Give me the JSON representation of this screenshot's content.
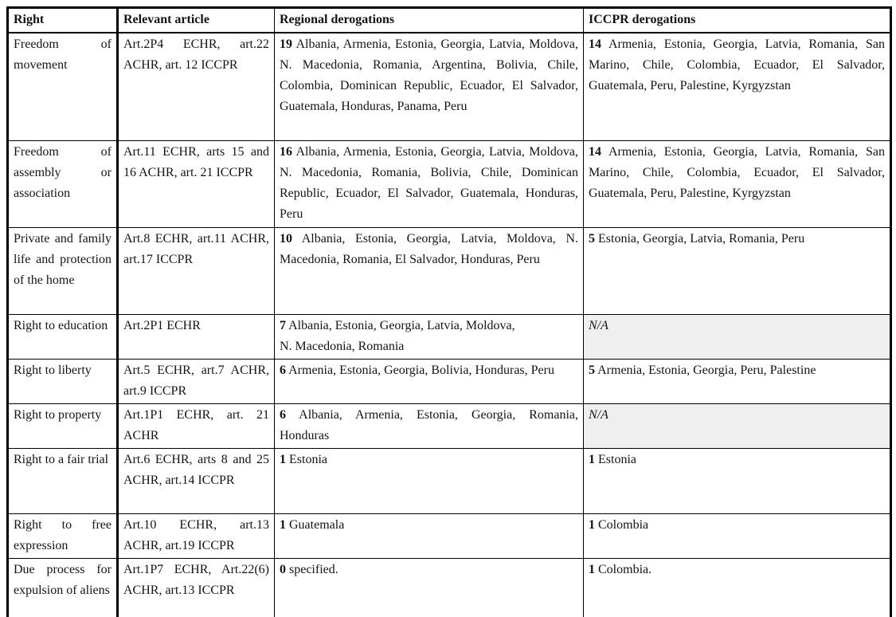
{
  "colors": {
    "border": "#000000",
    "text": "#141414",
    "na_cell_background": "#efefef",
    "page_background": "#ffffff"
  },
  "table": {
    "headers": [
      "Right",
      "Relevant article",
      "Regional derogations",
      "ICCPR derogations"
    ],
    "na_label": "N/A",
    "rows": [
      {
        "right": "Freedom of movement",
        "article": "Art.2P4 ECHR, art.22 ACHR, art. 12 ICCPR",
        "regional": {
          "count": "19",
          "text": "Albania, Armenia, Estonia, Georgia, Latvia, Moldova, N. Macedonia, Romania, Argentina, Bolivia, Chile, Colombia, Dominican Republic, Ecuador, El Salvador, Guatemala, Honduras, Panama, Peru"
        },
        "iccpr": {
          "count": "14",
          "text": "Armenia, Estonia, Georgia, Latvia, Romania, San Marino, Chile, Colombia, Ecuador, El Salvador, Guatemala, Peru, Palestine, Kyrgyzstan"
        }
      },
      {
        "right": "Freedom of assembly or association",
        "article": "Art.11 ECHR, arts 15 and 16 ACHR, art. 21 ICCPR",
        "regional": {
          "count": "16",
          "text": "Albania, Armenia, Estonia, Georgia, Latvia, Moldova, N. Macedonia, Romania, Bolivia, Chile, Dominican Republic, Ecuador, El Salvador, Guatemala, Honduras, Peru"
        },
        "iccpr": {
          "count": "14",
          "text": "Armenia, Estonia, Georgia, Latvia, Romania, San Marino, Chile, Colombia, Ecuador, El Salvador, Guatemala, Peru, Palestine, Kyrgyzstan"
        }
      },
      {
        "right": "Private and family life and protection of the home",
        "article": "Art.8 ECHR, art.11 ACHR, art.17 ICCPR",
        "regional": {
          "count": "10",
          "text": "Albania, Estonia, Georgia, Latvia, Moldova, N. Macedonia, Romania, El Salvador, Honduras, Peru"
        },
        "iccpr": {
          "count": "5",
          "text": "Estonia, Georgia, Latvia, Romania, Peru"
        }
      },
      {
        "right": "Right to education",
        "article": "Art.2P1 ECHR",
        "regional": {
          "count": "7",
          "text": "Albania, Estonia, Georgia, Latvia, Moldova,\nN. Macedonia, Romania"
        },
        "iccpr": {
          "na": true
        }
      },
      {
        "right": "Right to liberty",
        "article": "Art.5 ECHR, art.7 ACHR, art.9 ICCPR",
        "regional": {
          "count": "6",
          "text": "Armenia, Estonia, Georgia, Bolivia, Honduras, Peru"
        },
        "iccpr": {
          "count": "5",
          "text": "Armenia, Estonia, Georgia, Peru, Palestine"
        }
      },
      {
        "right": "Right to property",
        "article": "Art.1P1 ECHR, art. 21 ACHR",
        "regional": {
          "count": "6",
          "text": "Albania, Armenia, Estonia, Georgia, Romania, Honduras"
        },
        "iccpr": {
          "na": true
        }
      },
      {
        "right": "Right to a fair trial",
        "article": "Art.6 ECHR, arts 8 and 25 ACHR, art.14 ICCPR",
        "regional": {
          "count": "1",
          "text": "Estonia"
        },
        "iccpr": {
          "count": "1",
          "text": "Estonia"
        }
      },
      {
        "right": "Right to free expression",
        "article": "Art.10 ECHR, art.13 ACHR, art.19 ICCPR",
        "regional": {
          "count": "1",
          "text": "Guatemala"
        },
        "iccpr": {
          "count": "1",
          "text": "Colombia"
        }
      },
      {
        "right": "Due process for expulsion of aliens",
        "article": "Art.1P7 ECHR, Art.22(6) ACHR, art.13 ICCPR",
        "regional": {
          "count": "0",
          "text": "specified."
        },
        "iccpr": {
          "count": "1",
          "text": "Colombia."
        }
      }
    ]
  }
}
